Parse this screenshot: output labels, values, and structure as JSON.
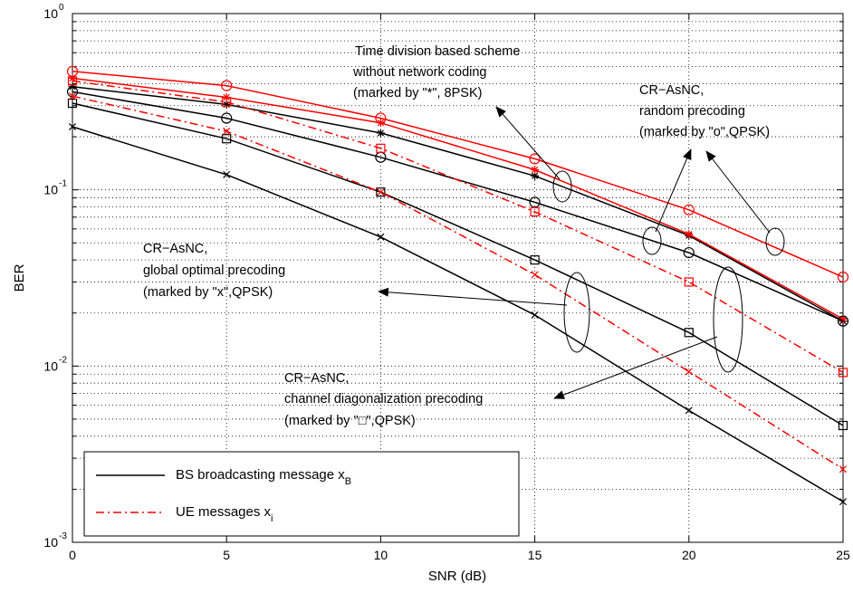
{
  "chart_data": {
    "type": "line",
    "title": "",
    "xlabel": "SNR (dB)",
    "ylabel": "BER",
    "xlim": [
      0,
      25
    ],
    "ylim": [
      0.001,
      1
    ],
    "yscale": "log",
    "grid": true,
    "x": [
      0,
      5,
      10,
      15,
      20,
      25
    ],
    "x_ticks": [
      "0",
      "5",
      "10",
      "15",
      "20",
      "25"
    ],
    "y_ticks": [
      {
        "value": 0.001,
        "base": "10",
        "exp": "-3"
      },
      {
        "value": 0.01,
        "base": "10",
        "exp": "-2"
      },
      {
        "value": 0.1,
        "base": "10",
        "exp": "-1"
      },
      {
        "value": 1,
        "base": "10",
        "exp": "0"
      }
    ],
    "series": [
      {
        "group": "time-division-8psk",
        "line": "BS",
        "marker": "star",
        "color": "#000000",
        "dash": "solid",
        "values": [
          0.385,
          0.305,
          0.21,
          0.12,
          0.055,
          0.018
        ]
      },
      {
        "group": "time-division-8psk",
        "line": "UE",
        "marker": "star",
        "color": "#ff0000",
        "dash": "solid",
        "values": [
          0.43,
          0.335,
          0.24,
          0.13,
          0.056,
          0.0185
        ]
      },
      {
        "group": "random-precoding",
        "line": "BS",
        "marker": "circle",
        "color": "#000000",
        "dash": "solid",
        "values": [
          0.36,
          0.255,
          0.153,
          0.085,
          0.044,
          0.018
        ]
      },
      {
        "group": "random-precoding",
        "line": "UE",
        "marker": "circle",
        "color": "#ff0000",
        "dash": "solid",
        "values": [
          0.47,
          0.39,
          0.255,
          0.15,
          0.077,
          0.032
        ]
      },
      {
        "group": "channel-diagonalization",
        "line": "BS",
        "marker": "square",
        "color": "#000000",
        "dash": "solid",
        "values": [
          0.31,
          0.195,
          0.097,
          0.04,
          0.0155,
          0.0046
        ]
      },
      {
        "group": "channel-diagonalization",
        "line": "UE",
        "marker": "square",
        "color": "#ff0000",
        "dash": "dashdot",
        "values": [
          0.415,
          0.315,
          0.172,
          0.075,
          0.03,
          0.0092
        ]
      },
      {
        "group": "global-optimal",
        "line": "BS",
        "marker": "x",
        "color": "#000000",
        "dash": "solid",
        "values": [
          0.228,
          0.122,
          0.054,
          0.0195,
          0.0056,
          0.0017
        ]
      },
      {
        "group": "global-optimal",
        "line": "UE",
        "marker": "x",
        "color": "#ff0000",
        "dash": "dashdot",
        "values": [
          0.34,
          0.215,
          0.097,
          0.033,
          0.0093,
          0.0026
        ]
      }
    ],
    "legend": {
      "placement": "bottom-left",
      "entries": [
        {
          "label": "BS broadcasting message x",
          "sub": "B",
          "color": "#000000",
          "dash": "solid"
        },
        {
          "label": "UE messages x",
          "sub": "i",
          "color": "#ff0000",
          "dash": "dashdot"
        }
      ]
    },
    "annotations": [
      {
        "id": "anno-time-division",
        "lines": [
          "Time division based scheme",
          "without network coding",
          "(marked by \"*\", 8PSK)"
        ]
      },
      {
        "id": "anno-random-precoding",
        "lines": [
          "CR−AsNC,",
          "random precoding",
          "(marked by \"o\",QPSK)"
        ]
      },
      {
        "id": "anno-global-optimal",
        "lines": [
          "CR−AsNC,",
          "global optimal precoding",
          "(marked by \"x\",QPSK)"
        ]
      },
      {
        "id": "anno-channel-diag",
        "lines": [
          "CR−AsNC,",
          "channel diagonalization precoding",
          "(marked by \"□\",QPSK)"
        ]
      }
    ]
  }
}
